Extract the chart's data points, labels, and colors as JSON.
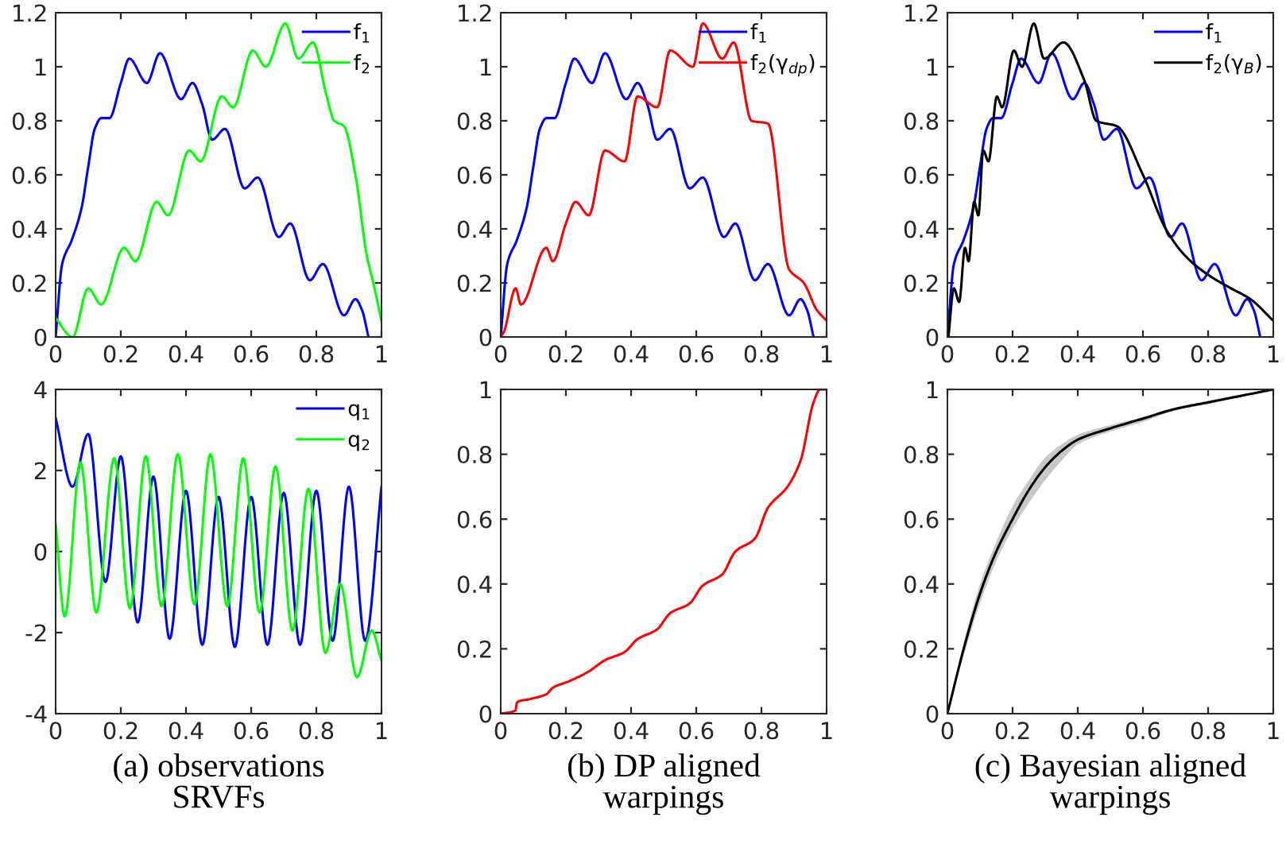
{
  "chart_data": [
    {
      "type": "line",
      "xlim": [
        0,
        1
      ],
      "ylim": [
        0,
        1.2
      ],
      "xticks": [
        0,
        0.2,
        0.4,
        0.6,
        0.8,
        1
      ],
      "yticks": [
        0,
        0.2,
        0.4,
        0.6,
        0.8,
        1,
        1.2
      ],
      "legend": "top right",
      "grid": false,
      "series": [
        {
          "name": "f$_{1}$",
          "color": "#0000ff",
          "x": [
            0,
            0.02,
            0.05,
            0.08,
            0.1,
            0.12,
            0.14,
            0.165,
            0.2,
            0.226,
            0.28,
            0.32,
            0.385,
            0.42,
            0.45,
            0.48,
            0.52,
            0.58,
            0.62,
            0.685,
            0.72,
            0.78,
            0.82,
            0.885,
            0.92,
            0.94,
            0.96
          ],
          "values": [
            0,
            0.27,
            0.36,
            0.48,
            0.63,
            0.77,
            0.81,
            0.81,
            0.94,
            1.03,
            0.94,
            1.05,
            0.88,
            0.94,
            0.86,
            0.73,
            0.77,
            0.55,
            0.59,
            0.37,
            0.42,
            0.21,
            0.27,
            0.08,
            0.14,
            0.1,
            0
          ]
        },
        {
          "name": "f$_{2}$",
          "color": "#00ff00",
          "x": [
            0,
            0.052,
            0.1,
            0.14,
            0.21,
            0.245,
            0.31,
            0.345,
            0.41,
            0.445,
            0.51,
            0.545,
            0.605,
            0.645,
            0.705,
            0.745,
            0.79,
            0.83,
            0.855,
            0.885,
            0.92,
            0.955,
            0.975,
            1
          ],
          "values": [
            0.07,
            0,
            0.18,
            0.12,
            0.33,
            0.28,
            0.5,
            0.45,
            0.69,
            0.65,
            0.89,
            0.85,
            1.06,
            1.0,
            1.16,
            1.03,
            1.09,
            0.9,
            0.8,
            0.78,
            0.6,
            0.3,
            0.2,
            0.06
          ]
        }
      ]
    },
    {
      "type": "line",
      "xlim": [
        0,
        1
      ],
      "ylim": [
        0,
        1.2
      ],
      "xticks": [
        0,
        0.2,
        0.4,
        0.6,
        0.8,
        1
      ],
      "yticks": [
        0,
        0.2,
        0.4,
        0.6,
        0.8,
        1,
        1.2
      ],
      "legend": "top right",
      "grid": false,
      "series": [
        {
          "name": "f$_{1}$",
          "color": "#0000ff",
          "x": [
            0,
            0.02,
            0.05,
            0.08,
            0.1,
            0.12,
            0.14,
            0.165,
            0.2,
            0.226,
            0.28,
            0.32,
            0.385,
            0.42,
            0.45,
            0.48,
            0.52,
            0.58,
            0.62,
            0.685,
            0.72,
            0.78,
            0.82,
            0.885,
            0.92,
            0.94,
            0.96
          ],
          "values": [
            0,
            0.27,
            0.36,
            0.48,
            0.63,
            0.77,
            0.81,
            0.81,
            0.94,
            1.03,
            0.94,
            1.05,
            0.88,
            0.94,
            0.86,
            0.73,
            0.77,
            0.55,
            0.59,
            0.37,
            0.42,
            0.21,
            0.27,
            0.08,
            0.14,
            0.1,
            0
          ]
        },
        {
          "name": "f$_{2}$(γ$_{dp}$)",
          "color": "#ff0000",
          "x": [
            0,
            0.01,
            0.046,
            0.062,
            0.14,
            0.16,
            0.2,
            0.23,
            0.27,
            0.32,
            0.38,
            0.42,
            0.48,
            0.52,
            0.59,
            0.62,
            0.68,
            0.715,
            0.77,
            0.82,
            0.885,
            0.93,
            0.97,
            1
          ],
          "values": [
            0,
            0.02,
            0.18,
            0.12,
            0.33,
            0.28,
            0.42,
            0.5,
            0.45,
            0.69,
            0.65,
            0.89,
            0.85,
            1.06,
            1.0,
            1.16,
            1.03,
            1.09,
            0.8,
            0.79,
            0.25,
            0.2,
            0.1,
            0.06
          ]
        }
      ]
    },
    {
      "type": "line",
      "xlim": [
        0,
        1
      ],
      "ylim": [
        0,
        1.2
      ],
      "xticks": [
        0,
        0.2,
        0.4,
        0.6,
        0.8,
        1
      ],
      "yticks": [
        0,
        0.2,
        0.4,
        0.6,
        0.8,
        1,
        1.2
      ],
      "legend": "top right",
      "grid": false,
      "series": [
        {
          "name": "f$_{1}$",
          "color": "#0000ff",
          "x": [
            0,
            0.02,
            0.05,
            0.08,
            0.1,
            0.12,
            0.14,
            0.165,
            0.2,
            0.226,
            0.28,
            0.32,
            0.385,
            0.42,
            0.45,
            0.48,
            0.52,
            0.58,
            0.62,
            0.685,
            0.72,
            0.78,
            0.82,
            0.885,
            0.92,
            0.94,
            0.96
          ],
          "values": [
            0,
            0.27,
            0.36,
            0.48,
            0.63,
            0.77,
            0.81,
            0.81,
            0.94,
            1.03,
            0.94,
            1.05,
            0.88,
            0.94,
            0.86,
            0.73,
            0.77,
            0.55,
            0.59,
            0.37,
            0.42,
            0.21,
            0.27,
            0.08,
            0.14,
            0.1,
            0
          ]
        },
        {
          "name": "f$_{2}$(γ$_{B}$)",
          "color": "#000000",
          "x": [
            0.003,
            0.02,
            0.036,
            0.054,
            0.065,
            0.082,
            0.095,
            0.11,
            0.126,
            0.152,
            0.168,
            0.204,
            0.229,
            0.265,
            0.297,
            0.356,
            0.42,
            0.457,
            0.52,
            0.6,
            0.67,
            0.73,
            0.8,
            0.87,
            0.93,
            1
          ],
          "values": [
            0,
            0.18,
            0.13,
            0.33,
            0.28,
            0.5,
            0.45,
            0.69,
            0.65,
            0.89,
            0.85,
            1.06,
            1.0,
            1.16,
            1.03,
            1.09,
            0.95,
            0.8,
            0.78,
            0.6,
            0.4,
            0.3,
            0.23,
            0.18,
            0.14,
            0.06
          ]
        }
      ]
    },
    {
      "type": "line",
      "xlim": [
        0,
        1
      ],
      "ylim": [
        -4,
        4
      ],
      "xticks": [
        0,
        0.2,
        0.4,
        0.6,
        0.8,
        1
      ],
      "yticks": [
        -4,
        -2,
        0,
        2,
        4
      ],
      "legend": "top right",
      "grid": false,
      "annotations": [
        "(a) observations\nSRVFs"
      ],
      "series": [
        {
          "name": "q$_{1}$",
          "color": "#0000ff",
          "x": [
            0,
            0.052,
            0.1,
            0.153,
            0.2,
            0.252,
            0.3,
            0.35,
            0.4,
            0.45,
            0.5,
            0.55,
            0.6,
            0.65,
            0.7,
            0.75,
            0.8,
            0.85,
            0.9,
            0.95,
            1
          ],
          "values": [
            3.3,
            1.6,
            2.9,
            -0.75,
            2.35,
            -1.75,
            1.85,
            -2.15,
            1.5,
            -2.3,
            1.35,
            -2.35,
            1.35,
            -2.3,
            1.45,
            -2.3,
            1.5,
            -2.2,
            1.6,
            -2.2,
            1.6
          ]
        },
        {
          "name": "q$_{2}$",
          "color": "#00ff00",
          "x": [
            0,
            0.028,
            0.076,
            0.125,
            0.18,
            0.228,
            0.277,
            0.325,
            0.375,
            0.426,
            0.475,
            0.527,
            0.576,
            0.626,
            0.675,
            0.727,
            0.776,
            0.828,
            0.873,
            0.925,
            0.97,
            1
          ],
          "values": [
            0.7,
            -1.6,
            2.2,
            -1.5,
            2.3,
            -1.4,
            2.35,
            -1.35,
            2.4,
            -1.3,
            2.4,
            -1.35,
            2.3,
            -1.5,
            2.1,
            -1.95,
            1.55,
            -2.5,
            -0.8,
            -3.1,
            -1.95,
            -2.7
          ]
        }
      ]
    },
    {
      "type": "line",
      "xlim": [
        0,
        1
      ],
      "ylim": [
        0,
        1
      ],
      "xticks": [
        0,
        0.2,
        0.4,
        0.6,
        0.8,
        1
      ],
      "yticks": [
        0,
        0.2,
        0.4,
        0.6,
        0.8,
        1
      ],
      "grid": false,
      "annotations": [
        "(b) DP aligned\nwarpings"
      ],
      "series": [
        {
          "color": "#ff0000",
          "x": [
            0,
            0.045,
            0.05,
            0.09,
            0.14,
            0.16,
            0.21,
            0.27,
            0.32,
            0.38,
            0.42,
            0.48,
            0.52,
            0.58,
            0.62,
            0.68,
            0.72,
            0.78,
            0.82,
            0.88,
            0.92,
            0.96,
            0.98,
            1
          ],
          "values": [
            0,
            0.01,
            0.035,
            0.045,
            0.06,
            0.08,
            0.1,
            0.13,
            0.165,
            0.19,
            0.23,
            0.26,
            0.31,
            0.34,
            0.395,
            0.43,
            0.5,
            0.54,
            0.635,
            0.7,
            0.78,
            0.96,
            1.0,
            1
          ]
        }
      ]
    },
    {
      "type": "line",
      "xlim": [
        0,
        1
      ],
      "ylim": [
        0,
        1
      ],
      "xticks": [
        0,
        0.2,
        0.4,
        0.6,
        0.8,
        1
      ],
      "yticks": [
        0,
        0.2,
        0.4,
        0.6,
        0.8,
        1
      ],
      "grid": false,
      "annotations": [
        "(c) Bayesian aligned\nwarpings"
      ],
      "series": [
        {
          "color": "#000000",
          "x": [
            0,
            0.05,
            0.1,
            0.15,
            0.2,
            0.25,
            0.3,
            0.35,
            0.4,
            0.5,
            0.6,
            0.7,
            0.8,
            0.9,
            1
          ],
          "values": [
            0,
            0.2,
            0.37,
            0.5,
            0.6,
            0.69,
            0.76,
            0.81,
            0.845,
            0.88,
            0.91,
            0.94,
            0.96,
            0.98,
            1
          ],
          "lower": [
            0,
            0.18,
            0.34,
            0.47,
            0.57,
            0.65,
            0.72,
            0.78,
            0.83,
            0.87,
            0.9,
            0.935,
            0.955,
            0.978,
            1
          ],
          "upper": [
            0,
            0.22,
            0.4,
            0.53,
            0.64,
            0.72,
            0.79,
            0.83,
            0.86,
            0.89,
            0.915,
            0.945,
            0.965,
            0.985,
            1
          ]
        }
      ]
    }
  ]
}
